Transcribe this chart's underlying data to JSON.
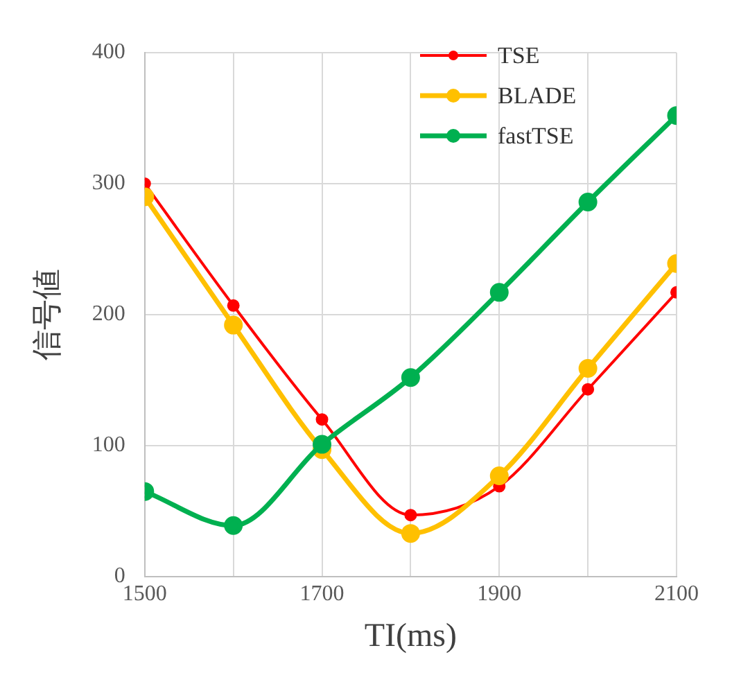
{
  "chart_data": {
    "type": "line",
    "xlabel": "TI(ms)",
    "ylabel": "信号値",
    "x": [
      1500,
      1600,
      1700,
      1800,
      1900,
      2000,
      2100
    ],
    "xlim": [
      1500,
      2100
    ],
    "xticks": [
      1500,
      {
        "value": 1600,
        "label": null
      },
      1700,
      {
        "value": 1800,
        "label": null
      },
      1900,
      {
        "value": 2000,
        "label": null
      },
      2100
    ],
    "ylim": [
      0,
      400
    ],
    "yticks": [
      0,
      100,
      200,
      300,
      400
    ],
    "series": [
      {
        "name": "TSE",
        "color": "#ff0000",
        "values": [
          300,
          207,
          120,
          47,
          69,
          143,
          217
        ]
      },
      {
        "name": "BLADE",
        "color": "#ffc000",
        "values": [
          290,
          192,
          97,
          33,
          77,
          159,
          239
        ]
      },
      {
        "name": "fastTSE",
        "color": "#00b050",
        "values": [
          65,
          39,
          101,
          152,
          217,
          286,
          352
        ]
      }
    ],
    "grid": true,
    "legend": "top right",
    "marker": "circle",
    "line_style": "solid"
  }
}
